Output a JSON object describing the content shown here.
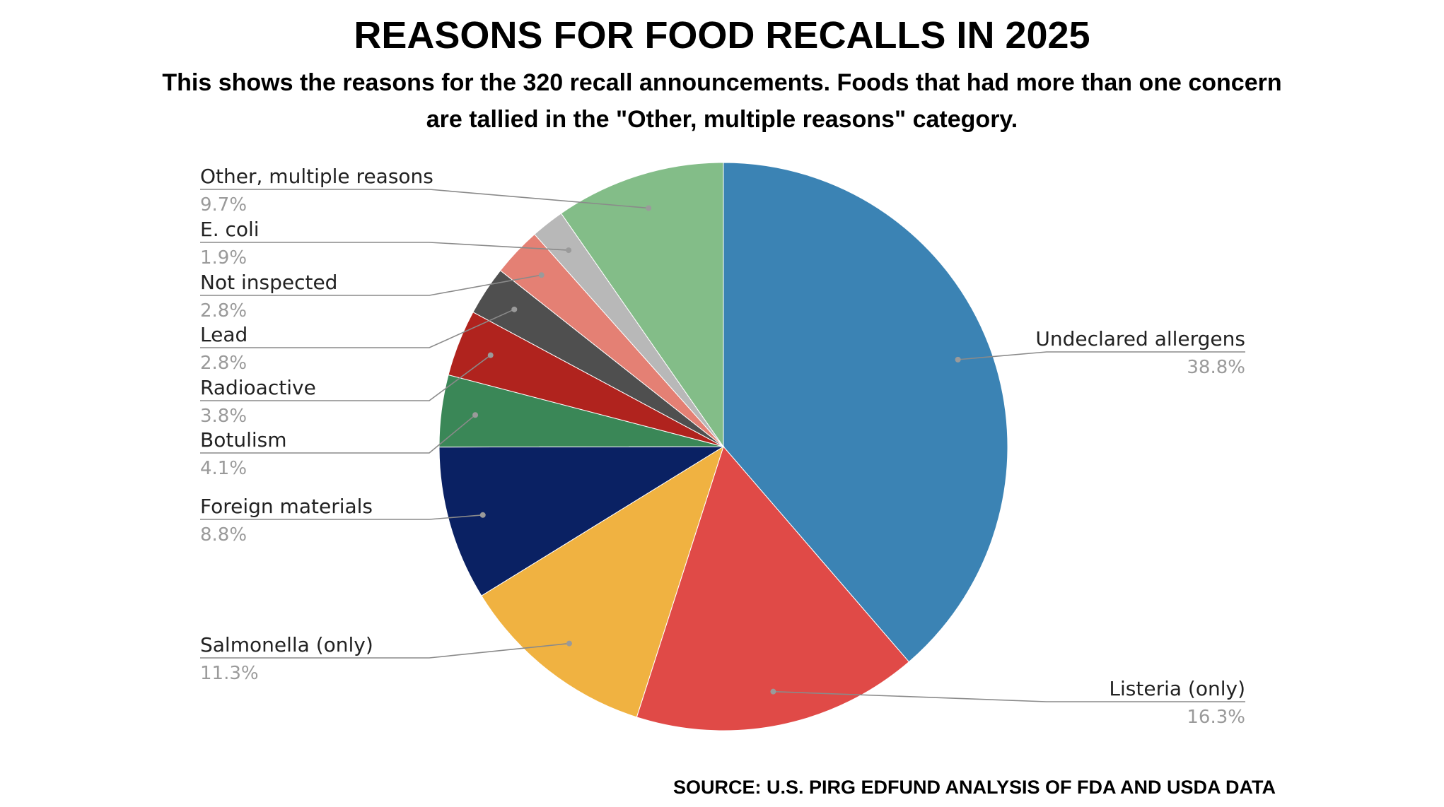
{
  "chart_data": {
    "type": "pie",
    "title": "REASONS FOR FOOD RECALLS IN 2025",
    "subtitle_lines": [
      "This shows the reasons for the 320 recall announcements. Foods that had more than one concern",
      "are tallied in the \"Other, multiple reasons\" category."
    ],
    "source": "SOURCE: U.S. PIRG EDFUND ANALYSIS OF FDA AND USDA DATA",
    "start": "12 o'clock",
    "direction": "clockwise",
    "slices": [
      {
        "label": "Undeclared allergens",
        "pct_label": "38.8%",
        "value": 38.8,
        "color": "#3b83b4"
      },
      {
        "label": "Listeria (only)",
        "pct_label": "16.3%",
        "value": 16.3,
        "color": "#e04a47"
      },
      {
        "label": "Salmonella (only)",
        "pct_label": "11.3%",
        "value": 11.3,
        "color": "#f0b241"
      },
      {
        "label": "Foreign materials",
        "pct_label": "8.8%",
        "value": 8.8,
        "color": "#0a2163"
      },
      {
        "label": "Botulism",
        "pct_label": "4.1%",
        "value": 4.1,
        "color": "#3a8757"
      },
      {
        "label": "Radioactive",
        "pct_label": "3.8%",
        "value": 3.8,
        "color": "#b0231e"
      },
      {
        "label": "Lead",
        "pct_label": "2.8%",
        "value": 2.8,
        "color": "#4f4f4f"
      },
      {
        "label": "Not inspected",
        "pct_label": "2.8%",
        "value": 2.8,
        "color": "#e48074"
      },
      {
        "label": "E. coli",
        "pct_label": "1.9%",
        "value": 1.9,
        "color": "#b8b8b8"
      },
      {
        "label": "Other, multiple reasons",
        "pct_label": "9.7%",
        "value": 9.7,
        "color": "#83bd88"
      }
    ]
  }
}
